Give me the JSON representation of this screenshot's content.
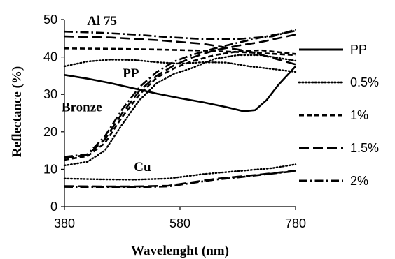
{
  "chart_data": {
    "type": "line",
    "xlabel": "Wavelenght (nm)",
    "ylabel": "Reflectance (%)",
    "xlim": [
      380,
      780
    ],
    "ylim": [
      0,
      50
    ],
    "xticks": [
      380,
      580,
      780
    ],
    "yticks": [
      0,
      10,
      20,
      30,
      40,
      50
    ],
    "grid": false,
    "legend_position": "right",
    "annotations": [
      {
        "text": "Al 75",
        "x": 445,
        "y": 48.5
      },
      {
        "text": "PP",
        "x": 495,
        "y": 34.5
      },
      {
        "text": "Bronze",
        "x": 410,
        "y": 25.5
      },
      {
        "text": "Cu",
        "x": 515,
        "y": 9.5
      }
    ],
    "series": [
      {
        "name": "PP",
        "style": "solid",
        "x": [
          380,
          420,
          460,
          500,
          540,
          580,
          620,
          660,
          690,
          710,
          730,
          750,
          780
        ],
        "y": [
          35.2,
          34.2,
          33.0,
          31.6,
          30.2,
          29.0,
          27.9,
          26.6,
          25.5,
          25.8,
          28.5,
          32.5,
          37.5
        ]
      },
      {
        "name": "0.5%",
        "style": "dotted",
        "x": [
          380,
          420,
          460,
          500,
          540,
          580,
          620,
          660,
          700,
          740,
          780
        ],
        "y": [
          37.5,
          38.8,
          39.3,
          39.2,
          38.6,
          38.2,
          38.6,
          38.5,
          37.5,
          36.8,
          36.0
        ]
      },
      {
        "name": "0.5%",
        "style": "dotted",
        "x": [
          380,
          420,
          450,
          480,
          510,
          540,
          570,
          600,
          640,
          680,
          720,
          780
        ],
        "y": [
          11.0,
          12.0,
          15.0,
          22.0,
          28.5,
          33.0,
          35.5,
          37.0,
          39.5,
          40.5,
          40.5,
          39.0
        ]
      },
      {
        "name": "0.5%",
        "style": "dotted",
        "x": [
          380,
          440,
          500,
          560,
          620,
          680,
          740,
          780
        ],
        "y": [
          7.5,
          7.3,
          7.2,
          7.5,
          8.7,
          9.5,
          10.3,
          11.3
        ]
      },
      {
        "name": "1%",
        "style": "dashed",
        "x": [
          380,
          460,
          540,
          620,
          700,
          780
        ],
        "y": [
          42.3,
          42.2,
          42.0,
          41.7,
          41.2,
          40.5
        ]
      },
      {
        "name": "1%",
        "style": "dashed",
        "x": [
          380,
          420,
          450,
          480,
          510,
          540,
          570,
          600,
          640,
          680,
          720,
          780
        ],
        "y": [
          12.5,
          13.5,
          17.0,
          24.0,
          30.0,
          34.5,
          37.0,
          38.8,
          40.5,
          41.5,
          41.8,
          40.8
        ]
      },
      {
        "name": "1.5%",
        "style": "long-dash",
        "x": [
          380,
          460,
          540,
          620,
          700,
          780
        ],
        "y": [
          45.5,
          45.2,
          44.5,
          43.5,
          41.5,
          38.0
        ]
      },
      {
        "name": "1.5%",
        "style": "long-dash",
        "x": [
          380,
          420,
          450,
          480,
          510,
          540,
          570,
          600,
          640,
          680,
          720,
          780
        ],
        "y": [
          13.0,
          13.8,
          18.0,
          25.0,
          31.0,
          35.0,
          37.8,
          39.8,
          41.8,
          43.0,
          44.0,
          46.0
        ]
      },
      {
        "name": "1.5%",
        "style": "long-dash",
        "x": [
          380,
          440,
          500,
          560,
          600,
          640,
          680,
          720,
          780
        ],
        "y": [
          5.5,
          5.4,
          5.4,
          5.6,
          6.5,
          7.4,
          8.0,
          8.6,
          9.6
        ]
      },
      {
        "name": "2%",
        "style": "dash-dot",
        "x": [
          380,
          440,
          500,
          560,
          620,
          680,
          740,
          780
        ],
        "y": [
          46.8,
          46.5,
          46.0,
          45.3,
          44.8,
          44.8,
          45.5,
          47.3
        ]
      },
      {
        "name": "2%",
        "style": "dash-dot",
        "x": [
          380,
          420,
          450,
          480,
          510,
          540,
          570,
          600,
          640,
          680,
          720,
          780
        ],
        "y": [
          13.3,
          14.0,
          18.8,
          26.0,
          32.0,
          36.0,
          38.8,
          40.5,
          42.3,
          43.8,
          45.2,
          47.0
        ]
      },
      {
        "name": "2%",
        "style": "dash-dot",
        "x": [
          380,
          440,
          500,
          560,
          600,
          640,
          680,
          720,
          780
        ],
        "y": [
          5.3,
          5.2,
          5.2,
          5.4,
          6.3,
          7.2,
          7.8,
          8.5,
          9.5
        ]
      }
    ],
    "legend": [
      {
        "name": "PP",
        "style": "solid"
      },
      {
        "name": "0.5%",
        "style": "dotted"
      },
      {
        "name": "1%",
        "style": "dashed"
      },
      {
        "name": "1.5%",
        "style": "long-dash"
      },
      {
        "name": "2%",
        "style": "dash-dot"
      }
    ]
  }
}
